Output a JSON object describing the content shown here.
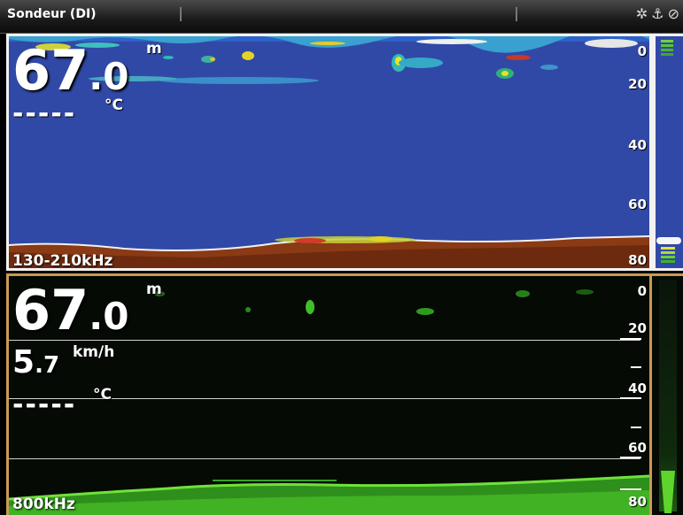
{
  "title_bar": {
    "title": "Sondeur (DI)",
    "icons": [
      "satellite-icon",
      "anchor-icon",
      "compass-icon"
    ]
  },
  "top_panel": {
    "depth_int": "67",
    "depth_dec": ".0",
    "depth_unit": "m",
    "temp_value": "-----",
    "temp_unit": "°C",
    "frequency": "130-210kHz",
    "depth_scale": [
      "0",
      "20",
      "40",
      "60",
      "80"
    ],
    "colors": {
      "background": "#3149a6",
      "bottom": "#8a3a14"
    }
  },
  "bottom_panel": {
    "depth_int": "67",
    "depth_dec": ".0",
    "depth_unit": "m",
    "speed_int": "5",
    "speed_dec": ".7",
    "speed_unit": "km/h",
    "temp_value": "-----",
    "temp_unit": "°C",
    "frequency": "800kHz",
    "depth_scale": [
      "0",
      "20",
      "40",
      "60",
      "80"
    ],
    "colors": {
      "background": "#050a05",
      "bottom": "#4fcf2a"
    }
  }
}
